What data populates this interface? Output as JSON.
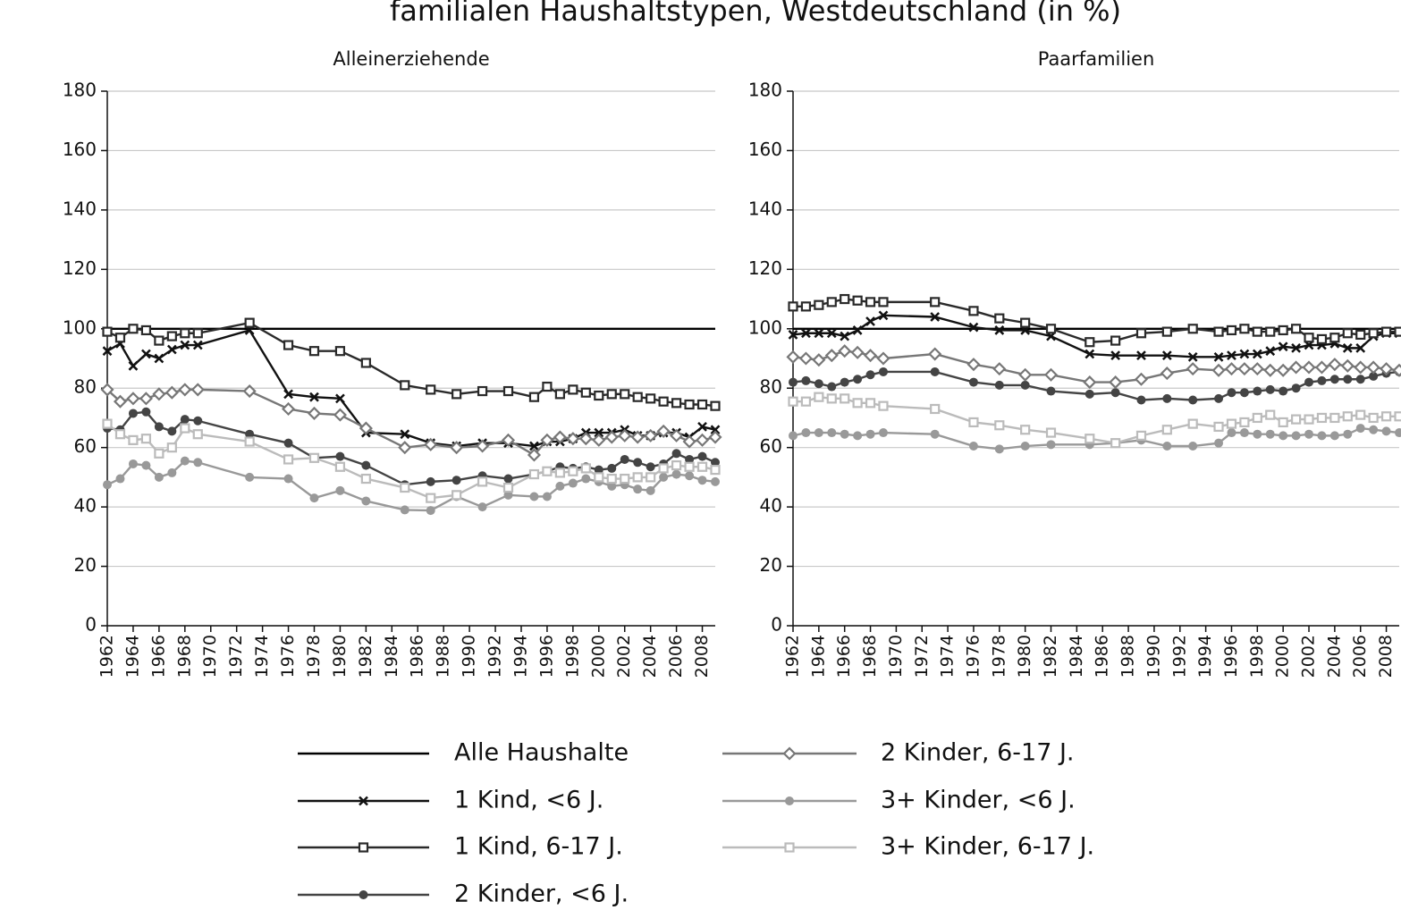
{
  "title": "familialen Haushaltstypen, Westdeutschland (in %)",
  "chart_data": [
    {
      "type": "line",
      "title": "Alleinerziehende",
      "x": [
        1962,
        1963,
        1964,
        1965,
        1966,
        1967,
        1968,
        1969,
        1973,
        1976,
        1978,
        1980,
        1982,
        1985,
        1987,
        1989,
        1991,
        1993,
        1995,
        1996,
        1997,
        1998,
        1999,
        2000,
        2001,
        2002,
        2003,
        2004,
        2005,
        2006,
        2007,
        2008,
        2009
      ],
      "xlim": [
        1962,
        2009
      ],
      "xticks": [
        1962,
        1964,
        1966,
        1968,
        1970,
        1972,
        1974,
        1976,
        1978,
        1980,
        1982,
        1984,
        1986,
        1988,
        1990,
        1992,
        1994,
        1996,
        1998,
        2000,
        2002,
        2004,
        2006,
        2008
      ],
      "ylim": [
        0,
        180
      ],
      "yticks": [
        0,
        20,
        40,
        60,
        80,
        100,
        120,
        140,
        160,
        180
      ],
      "grid": true,
      "series": [
        {
          "name": "Alle Haushalte",
          "color": "#000000",
          "marker": "none",
          "values": [
            100,
            100,
            100,
            100,
            100,
            100,
            100,
            100,
            100,
            100,
            100,
            100,
            100,
            100,
            100,
            100,
            100,
            100,
            100,
            100,
            100,
            100,
            100,
            100,
            100,
            100,
            100,
            100,
            100,
            100,
            100,
            100,
            100
          ]
        },
        {
          "name": "1 Kind, <6 J.",
          "color": "#111111",
          "marker": "x",
          "values": [
            92.5,
            95,
            87.5,
            91.5,
            90,
            93,
            94.5,
            94.5,
            99.5,
            78,
            77,
            76.5,
            65,
            64.5,
            61.5,
            60.5,
            61.5,
            61.5,
            60.5,
            62,
            62,
            63,
            65,
            65,
            65,
            66,
            64,
            64,
            65,
            65,
            63.5,
            67,
            66
          ]
        },
        {
          "name": "1 Kind, 6-17 J.",
          "color": "#2a2a2a",
          "marker": "square",
          "values": [
            99,
            97,
            100,
            99.5,
            96,
            97.5,
            98.5,
            98.5,
            102,
            94.5,
            92.5,
            92.5,
            88.5,
            81,
            79.5,
            78,
            79,
            79,
            77,
            80.5,
            78,
            79.5,
            78.5,
            77.5,
            78,
            78,
            77,
            76.5,
            75.5,
            75,
            74.5,
            74.5,
            74
          ]
        },
        {
          "name": "2 Kinder, <6 J.",
          "color": "#444444",
          "marker": "circle",
          "values": [
            66.5,
            66,
            71.5,
            72,
            67,
            65.5,
            69.5,
            69,
            64.5,
            61.5,
            56.5,
            57,
            54,
            47.5,
            48.5,
            49,
            50.5,
            49.5,
            51,
            52,
            53.5,
            53,
            53.5,
            52.5,
            53,
            56,
            55,
            53.5,
            54.5,
            58,
            56,
            57,
            55
          ]
        },
        {
          "name": "2 Kinder, 6-17 J.",
          "color": "#777777",
          "marker": "diamond",
          "values": [
            79.5,
            75.5,
            76.5,
            76.5,
            78,
            78.5,
            79.5,
            79.5,
            79,
            73,
            71.5,
            71,
            66.5,
            60,
            61,
            60,
            60.5,
            62.5,
            57.5,
            62.5,
            63.5,
            63,
            63,
            62.5,
            63.5,
            64,
            63.5,
            64,
            65.5,
            64,
            62,
            62.5,
            63.5
          ]
        },
        {
          "name": "3+ Kinder, <6 J.",
          "color": "#999999",
          "marker": "circle",
          "values": [
            47.5,
            49.5,
            54.5,
            54,
            50,
            51.5,
            55.5,
            55,
            50,
            49.5,
            43,
            45.5,
            42,
            39,
            38.8,
            43.5,
            40,
            44,
            43.5,
            43.5,
            47,
            48,
            49.5,
            48.5,
            47,
            47.5,
            46,
            45.5,
            50,
            51,
            50.5,
            49,
            48.5
          ]
        },
        {
          "name": "3+ Kinder, 6-17 J.",
          "color": "#bbbbbb",
          "marker": "square",
          "values": [
            68,
            64.5,
            62.5,
            63,
            58,
            60,
            66.5,
            64.5,
            62,
            56,
            56.5,
            53.5,
            49.5,
            46.5,
            43,
            44,
            48.5,
            46.5,
            51,
            52,
            51.5,
            52,
            53,
            50,
            49.5,
            49.5,
            50,
            50,
            53,
            54,
            53.5,
            53.5,
            52.5
          ]
        }
      ]
    },
    {
      "type": "line",
      "title": "Paarfamilien",
      "x": [
        1962,
        1963,
        1964,
        1965,
        1966,
        1967,
        1968,
        1969,
        1973,
        1976,
        1978,
        1980,
        1982,
        1985,
        1987,
        1989,
        1991,
        1993,
        1995,
        1996,
        1997,
        1998,
        1999,
        2000,
        2001,
        2002,
        2003,
        2004,
        2005,
        2006,
        2007,
        2008,
        2009
      ],
      "xlim": [
        1962,
        2009
      ],
      "xticks": [
        1962,
        1964,
        1966,
        1968,
        1970,
        1972,
        1974,
        1976,
        1978,
        1980,
        1982,
        1984,
        1986,
        1988,
        1990,
        1992,
        1994,
        1996,
        1998,
        2000,
        2002,
        2004,
        2006,
        2008
      ],
      "ylim": [
        0,
        180
      ],
      "yticks": [
        0,
        20,
        40,
        60,
        80,
        100,
        120,
        140,
        160,
        180
      ],
      "grid": true,
      "series": [
        {
          "color": "#000000",
          "marker": "none",
          "values": [
            100,
            100,
            100,
            100,
            100,
            100,
            100,
            100,
            100,
            100,
            100,
            100,
            100,
            100,
            100,
            100,
            100,
            100,
            100,
            100,
            100,
            100,
            100,
            100,
            100,
            100,
            100,
            100,
            100,
            100,
            100,
            100,
            100
          ]
        },
        {
          "color": "#111111",
          "marker": "x",
          "values": [
            98,
            98.5,
            98.5,
            98.5,
            97.5,
            99.5,
            102.5,
            104.5,
            104,
            100.5,
            99.5,
            99.5,
            97.5,
            91.5,
            91,
            91,
            91,
            90.5,
            90.5,
            91,
            91.5,
            91.5,
            92.5,
            94,
            93.5,
            94.5,
            94.5,
            95,
            93.5,
            93.5,
            97.5,
            98.5,
            98.5
          ]
        },
        {
          "color": "#2a2a2a",
          "marker": "square",
          "values": [
            107.5,
            107.5,
            108,
            109,
            110,
            109.5,
            109,
            109,
            109,
            106,
            103.5,
            102,
            100,
            95.5,
            96,
            98.5,
            99,
            100,
            99,
            99.5,
            100,
            99,
            99,
            99.5,
            100,
            97,
            96.5,
            97,
            98.5,
            98,
            98.5,
            99,
            99
          ]
        },
        {
          "color": "#444444",
          "marker": "circle",
          "values": [
            82,
            82.5,
            81.5,
            80.5,
            82,
            83,
            84.5,
            85.5,
            85.5,
            82,
            81,
            81,
            79,
            78,
            78.5,
            76,
            76.5,
            76,
            76.5,
            78.5,
            78.5,
            79,
            79.5,
            79,
            80,
            82,
            82.5,
            83,
            83,
            83,
            84,
            85,
            85.5
          ]
        },
        {
          "color": "#777777",
          "marker": "diamond",
          "values": [
            90.5,
            90,
            89.5,
            91,
            92.5,
            92,
            91,
            90,
            91.5,
            88,
            86.5,
            84.5,
            84.5,
            82,
            82,
            83,
            85,
            86.5,
            86,
            86.5,
            86.5,
            86.5,
            86,
            86,
            87,
            87,
            87,
            88,
            87.5,
            87,
            87,
            86.5,
            86
          ]
        },
        {
          "color": "#999999",
          "marker": "circle",
          "values": [
            64,
            65,
            65,
            65,
            64.5,
            64,
            64.5,
            65,
            64.5,
            60.5,
            59.5,
            60.5,
            61,
            61,
            61.5,
            62.5,
            60.5,
            60.5,
            61.5,
            65,
            65,
            64.5,
            64.5,
            64,
            64,
            64.5,
            64,
            64,
            64.5,
            66.5,
            66,
            65.5,
            65
          ]
        },
        {
          "color": "#bbbbbb",
          "marker": "square",
          "values": [
            75.5,
            75.5,
            77,
            76.5,
            76.5,
            75,
            75,
            74,
            73,
            68.5,
            67.5,
            66,
            65,
            63,
            61.5,
            64,
            66,
            68,
            67,
            68,
            68.5,
            70,
            71,
            68.5,
            69.5,
            69.5,
            70,
            70,
            70.5,
            71,
            70,
            70.5,
            70.5
          ]
        }
      ]
    }
  ]
}
